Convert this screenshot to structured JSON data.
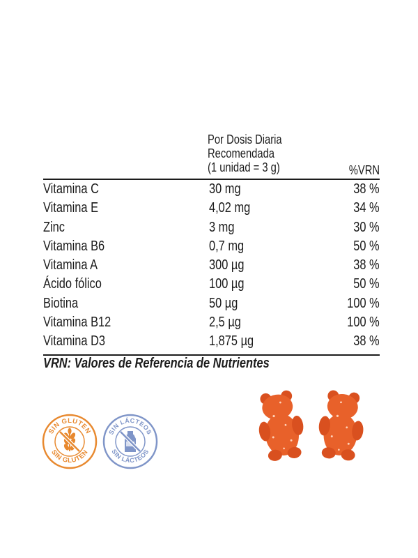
{
  "table": {
    "header": {
      "dose_lines": [
        "Por Dosis Diaria",
        "Recomendada",
        "(1 unidad = 3 g)"
      ],
      "vrn": "%VRN"
    },
    "rows": [
      {
        "name": "Vitamina C",
        "amount": "30 mg",
        "pct": "38 %"
      },
      {
        "name": "Vitamina E",
        "amount": "4,02 mg",
        "pct": "34 %"
      },
      {
        "name": "Zinc",
        "amount": "3 mg",
        "pct": "30 %"
      },
      {
        "name": "Vitamina B6",
        "amount": "0,7 mg",
        "pct": "50 %"
      },
      {
        "name": "Vitamina A",
        "amount": "300 µg",
        "pct": "38 %"
      },
      {
        "name": "Ácido fólico",
        "amount": "100 µg",
        "pct": "50 %"
      },
      {
        "name": "Biotina",
        "amount": "50 µg",
        "pct": "100 %"
      },
      {
        "name": "Vitamina B12",
        "amount": "2,5 µg",
        "pct": "100 %"
      },
      {
        "name": "Vitamina D3",
        "amount": "1,875 µg",
        "pct": "38 %"
      }
    ]
  },
  "footnote": "VRN: Valores de Referencia de Nutrientes",
  "badges": {
    "gluten": {
      "text": "SIN GLUTEN",
      "icon": "wheat-crossed-icon",
      "color": "#e8892f"
    },
    "lactose": {
      "text": "SIN LÁCTEOS",
      "icon": "milk-bottle-crossed-icon",
      "color": "#7f95c8"
    }
  },
  "gummies": {
    "icon": "bear-gummy-icon",
    "count": 2,
    "color": "#e8612a"
  }
}
